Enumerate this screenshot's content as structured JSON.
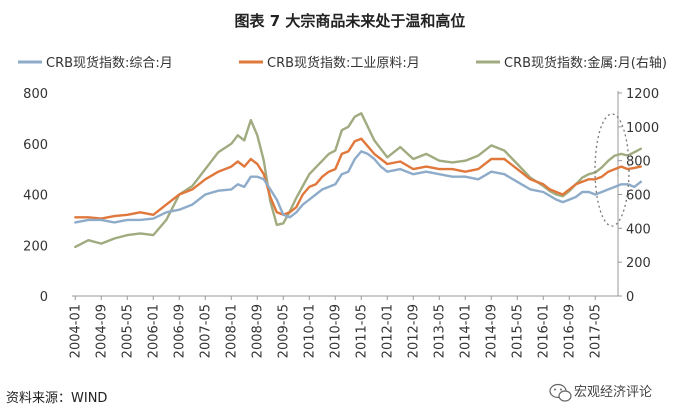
{
  "chart_data": {
    "type": "line",
    "title": "图表 7 大宗商品未来处于温和高位",
    "source": "资料来源：WIND",
    "watermark": "宏观经济评论",
    "x_ticks": [
      "2004-01",
      "2004-09",
      "2005-05",
      "2006-01",
      "2006-09",
      "2007-05",
      "2008-01",
      "2008-09",
      "2009-05",
      "2010-01",
      "2010-09",
      "2011-05",
      "2012-01",
      "2012-09",
      "2013-05",
      "2014-01",
      "2014-09",
      "2015-05",
      "2016-01",
      "2016-09",
      "2017-05"
    ],
    "y_left": {
      "min": 0,
      "max": 800,
      "ticks": [
        0,
        200,
        400,
        600,
        800
      ]
    },
    "y_right": {
      "min": 0,
      "max": 1200,
      "ticks": [
        0,
        200,
        400,
        600,
        800,
        1000,
        1200
      ]
    },
    "legend_position": "top",
    "series": [
      {
        "name": "CRB现货指数:综合:月",
        "axis": "left",
        "color": "#8eabc9",
        "values": [
          [
            0,
            290
          ],
          [
            4,
            300
          ],
          [
            8,
            300
          ],
          [
            12,
            290
          ],
          [
            16,
            300
          ],
          [
            20,
            300
          ],
          [
            24,
            305
          ],
          [
            28,
            330
          ],
          [
            32,
            340
          ],
          [
            36,
            360
          ],
          [
            40,
            400
          ],
          [
            44,
            415
          ],
          [
            48,
            420
          ],
          [
            50,
            440
          ],
          [
            52,
            430
          ],
          [
            54,
            470
          ],
          [
            56,
            470
          ],
          [
            58,
            460
          ],
          [
            60,
            420
          ],
          [
            62,
            380
          ],
          [
            64,
            320
          ],
          [
            66,
            310
          ],
          [
            68,
            330
          ],
          [
            70,
            360
          ],
          [
            72,
            380
          ],
          [
            74,
            400
          ],
          [
            76,
            420
          ],
          [
            78,
            430
          ],
          [
            80,
            440
          ],
          [
            82,
            480
          ],
          [
            84,
            490
          ],
          [
            86,
            540
          ],
          [
            88,
            570
          ],
          [
            90,
            560
          ],
          [
            92,
            540
          ],
          [
            94,
            510
          ],
          [
            96,
            490
          ],
          [
            100,
            500
          ],
          [
            104,
            480
          ],
          [
            108,
            490
          ],
          [
            112,
            480
          ],
          [
            116,
            470
          ],
          [
            120,
            470
          ],
          [
            124,
            460
          ],
          [
            128,
            490
          ],
          [
            132,
            480
          ],
          [
            136,
            450
          ],
          [
            140,
            420
          ],
          [
            144,
            410
          ],
          [
            146,
            395
          ],
          [
            148,
            380
          ],
          [
            150,
            370
          ],
          [
            152,
            380
          ],
          [
            154,
            390
          ],
          [
            156,
            410
          ],
          [
            158,
            410
          ],
          [
            160,
            400
          ],
          [
            162,
            410
          ],
          [
            164,
            420
          ],
          [
            166,
            430
          ],
          [
            168,
            440
          ],
          [
            170,
            440
          ],
          [
            172,
            430
          ],
          [
            174,
            450
          ]
        ]
      },
      {
        "name": "CRB现货指数:工业原料:月",
        "axis": "left",
        "color": "#e0783c",
        "values": [
          [
            0,
            310
          ],
          [
            4,
            310
          ],
          [
            8,
            305
          ],
          [
            12,
            315
          ],
          [
            16,
            320
          ],
          [
            20,
            330
          ],
          [
            24,
            320
          ],
          [
            28,
            360
          ],
          [
            32,
            400
          ],
          [
            36,
            420
          ],
          [
            40,
            460
          ],
          [
            44,
            490
          ],
          [
            48,
            510
          ],
          [
            50,
            530
          ],
          [
            52,
            510
          ],
          [
            54,
            540
          ],
          [
            56,
            520
          ],
          [
            58,
            480
          ],
          [
            60,
            390
          ],
          [
            62,
            330
          ],
          [
            64,
            320
          ],
          [
            66,
            330
          ],
          [
            68,
            350
          ],
          [
            70,
            400
          ],
          [
            72,
            430
          ],
          [
            74,
            440
          ],
          [
            76,
            470
          ],
          [
            78,
            490
          ],
          [
            80,
            500
          ],
          [
            82,
            560
          ],
          [
            84,
            570
          ],
          [
            86,
            610
          ],
          [
            88,
            620
          ],
          [
            90,
            590
          ],
          [
            92,
            560
          ],
          [
            94,
            540
          ],
          [
            96,
            520
          ],
          [
            100,
            530
          ],
          [
            104,
            500
          ],
          [
            108,
            510
          ],
          [
            112,
            500
          ],
          [
            116,
            500
          ],
          [
            120,
            490
          ],
          [
            124,
            500
          ],
          [
            128,
            540
          ],
          [
            132,
            540
          ],
          [
            136,
            500
          ],
          [
            140,
            460
          ],
          [
            144,
            440
          ],
          [
            146,
            420
          ],
          [
            148,
            410
          ],
          [
            150,
            400
          ],
          [
            152,
            420
          ],
          [
            154,
            440
          ],
          [
            156,
            450
          ],
          [
            158,
            460
          ],
          [
            160,
            460
          ],
          [
            162,
            470
          ],
          [
            164,
            490
          ],
          [
            166,
            500
          ],
          [
            168,
            510
          ],
          [
            170,
            500
          ],
          [
            172,
            505
          ],
          [
            174,
            510
          ]
        ]
      },
      {
        "name": "CRB现货指数:金属:月(右轴)",
        "axis": "right",
        "color": "#a0ab80",
        "values": [
          [
            0,
            290
          ],
          [
            4,
            330
          ],
          [
            8,
            310
          ],
          [
            12,
            340
          ],
          [
            16,
            360
          ],
          [
            20,
            370
          ],
          [
            24,
            360
          ],
          [
            28,
            450
          ],
          [
            32,
            600
          ],
          [
            36,
            650
          ],
          [
            40,
            750
          ],
          [
            44,
            850
          ],
          [
            48,
            900
          ],
          [
            50,
            950
          ],
          [
            52,
            920
          ],
          [
            54,
            1040
          ],
          [
            56,
            950
          ],
          [
            58,
            800
          ],
          [
            60,
            560
          ],
          [
            62,
            420
          ],
          [
            64,
            430
          ],
          [
            66,
            500
          ],
          [
            68,
            580
          ],
          [
            70,
            650
          ],
          [
            72,
            720
          ],
          [
            74,
            760
          ],
          [
            76,
            800
          ],
          [
            78,
            840
          ],
          [
            80,
            860
          ],
          [
            82,
            980
          ],
          [
            84,
            1000
          ],
          [
            86,
            1060
          ],
          [
            88,
            1080
          ],
          [
            90,
            1000
          ],
          [
            92,
            920
          ],
          [
            94,
            870
          ],
          [
            96,
            820
          ],
          [
            100,
            880
          ],
          [
            104,
            810
          ],
          [
            108,
            840
          ],
          [
            112,
            800
          ],
          [
            116,
            790
          ],
          [
            120,
            800
          ],
          [
            124,
            830
          ],
          [
            128,
            890
          ],
          [
            132,
            860
          ],
          [
            136,
            780
          ],
          [
            140,
            700
          ],
          [
            144,
            650
          ],
          [
            146,
            620
          ],
          [
            148,
            600
          ],
          [
            150,
            590
          ],
          [
            152,
            620
          ],
          [
            154,
            660
          ],
          [
            156,
            700
          ],
          [
            158,
            720
          ],
          [
            160,
            730
          ],
          [
            162,
            760
          ],
          [
            164,
            800
          ],
          [
            166,
            830
          ],
          [
            168,
            840
          ],
          [
            170,
            830
          ],
          [
            172,
            850
          ],
          [
            174,
            870
          ]
        ]
      }
    ],
    "annotation": "dashed ellipse around 2016-09 to 2017-05"
  }
}
